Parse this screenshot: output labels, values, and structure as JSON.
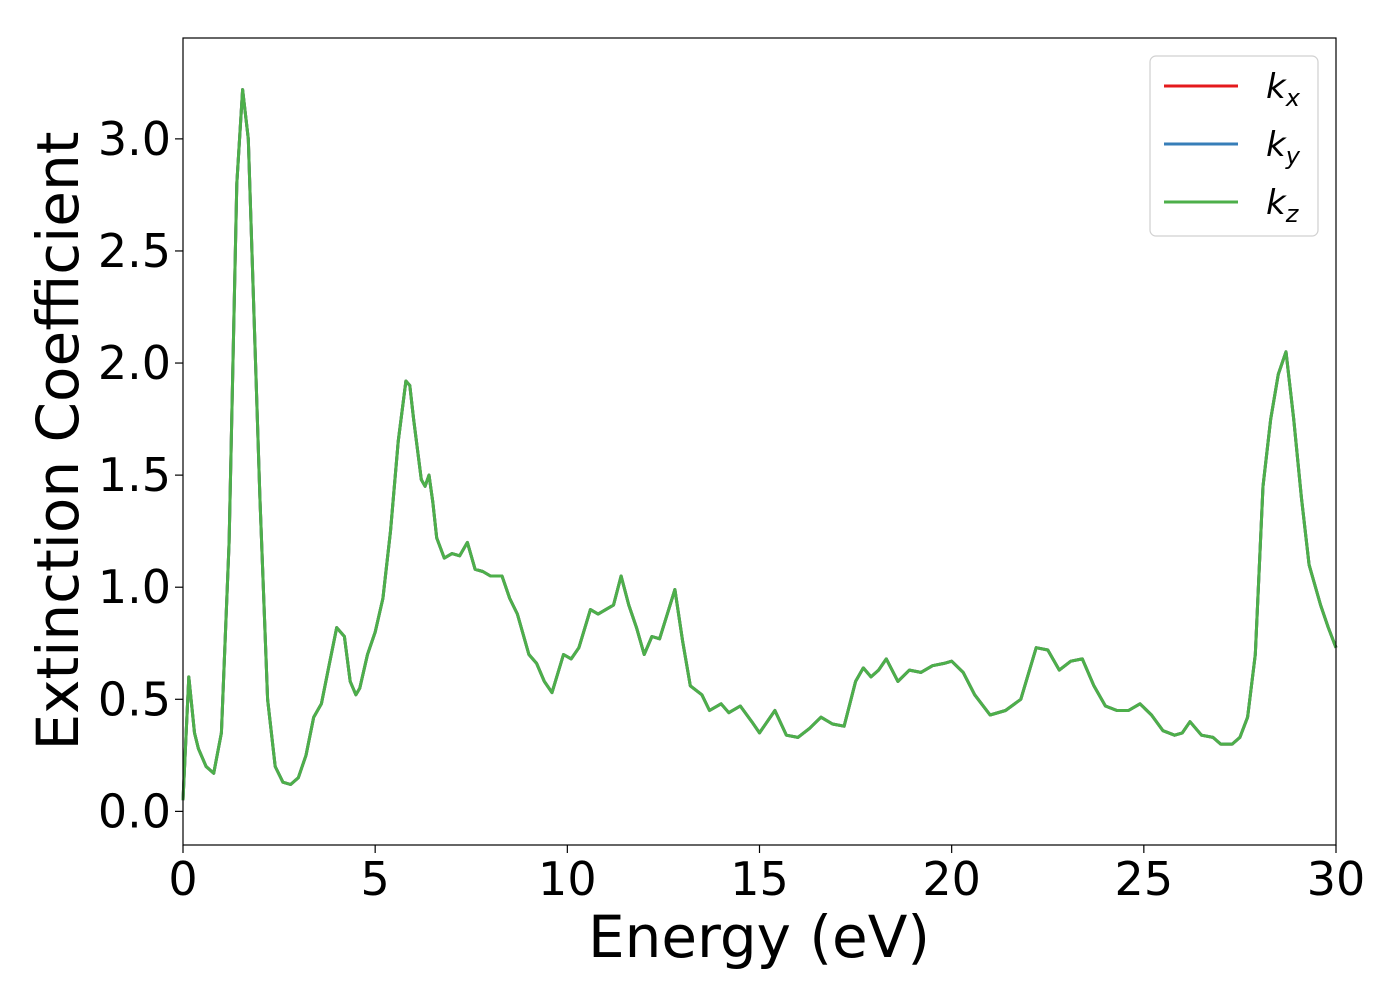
{
  "chart_data": {
    "type": "line",
    "xlabel": "Energy (eV)",
    "ylabel": "Extinction Coefficient",
    "xlim": [
      0,
      30
    ],
    "ylim": [
      -0.15,
      3.45
    ],
    "xticks": [
      "0",
      "5",
      "10",
      "15",
      "20",
      "25",
      "30"
    ],
    "yticks": [
      "0.0",
      "0.5",
      "1.0",
      "1.5",
      "2.0",
      "2.5",
      "3.0"
    ],
    "grid": false,
    "legend_position": "top-right",
    "series": [
      {
        "name": "k",
        "subscript": "x",
        "color": "#e41a1c"
      },
      {
        "name": "k",
        "subscript": "y",
        "color": "#377eb8"
      },
      {
        "name": "k",
        "subscript": "z",
        "color": "#4daf4a"
      }
    ],
    "x": [
      0,
      0.15,
      0.3,
      0.4,
      0.6,
      0.8,
      1.0,
      1.2,
      1.4,
      1.55,
      1.7,
      1.85,
      2.0,
      2.2,
      2.4,
      2.6,
      2.8,
      3.0,
      3.2,
      3.4,
      3.6,
      3.8,
      4.0,
      4.2,
      4.35,
      4.5,
      4.6,
      4.8,
      5.0,
      5.2,
      5.4,
      5.6,
      5.8,
      5.9,
      6.0,
      6.2,
      6.3,
      6.4,
      6.5,
      6.6,
      6.8,
      7.0,
      7.2,
      7.4,
      7.6,
      7.8,
      8.0,
      8.3,
      8.5,
      8.7,
      9.0,
      9.2,
      9.4,
      9.6,
      9.9,
      10.1,
      10.3,
      10.6,
      10.8,
      11.0,
      11.2,
      11.4,
      11.6,
      11.8,
      12.0,
      12.2,
      12.4,
      12.6,
      12.8,
      13.0,
      13.2,
      13.5,
      13.7,
      14.0,
      14.2,
      14.5,
      14.8,
      15.0,
      15.4,
      15.7,
      16.0,
      16.3,
      16.6,
      16.9,
      17.2,
      17.5,
      17.7,
      17.9,
      18.1,
      18.3,
      18.6,
      18.9,
      19.2,
      19.5,
      19.8,
      20.0,
      20.3,
      20.6,
      21.0,
      21.4,
      21.8,
      22.2,
      22.5,
      22.8,
      23.1,
      23.4,
      23.7,
      24.0,
      24.3,
      24.6,
      24.9,
      25.2,
      25.5,
      25.8,
      26.0,
      26.2,
      26.5,
      26.8,
      27.0,
      27.3,
      27.5,
      27.7,
      27.9,
      28.1,
      28.3,
      28.5,
      28.7,
      28.9,
      29.1,
      29.3,
      29.6,
      29.8,
      30.0
    ],
    "y": [
      0.05,
      0.6,
      0.35,
      0.28,
      0.2,
      0.17,
      0.35,
      1.2,
      2.8,
      3.22,
      3.0,
      2.2,
      1.4,
      0.5,
      0.2,
      0.13,
      0.12,
      0.15,
      0.25,
      0.42,
      0.48,
      0.65,
      0.82,
      0.78,
      0.58,
      0.52,
      0.55,
      0.7,
      0.8,
      0.95,
      1.25,
      1.65,
      1.92,
      1.9,
      1.75,
      1.48,
      1.45,
      1.5,
      1.38,
      1.22,
      1.13,
      1.15,
      1.14,
      1.2,
      1.08,
      1.07,
      1.05,
      1.05,
      0.95,
      0.88,
      0.7,
      0.66,
      0.58,
      0.53,
      0.7,
      0.68,
      0.73,
      0.9,
      0.88,
      0.9,
      0.92,
      1.05,
      0.92,
      0.82,
      0.7,
      0.78,
      0.77,
      0.88,
      0.99,
      0.76,
      0.56,
      0.52,
      0.45,
      0.48,
      0.44,
      0.47,
      0.4,
      0.35,
      0.45,
      0.34,
      0.33,
      0.37,
      0.42,
      0.39,
      0.38,
      0.58,
      0.64,
      0.6,
      0.63,
      0.68,
      0.58,
      0.63,
      0.62,
      0.65,
      0.66,
      0.67,
      0.62,
      0.52,
      0.43,
      0.45,
      0.5,
      0.73,
      0.72,
      0.63,
      0.67,
      0.68,
      0.56,
      0.47,
      0.45,
      0.45,
      0.48,
      0.43,
      0.36,
      0.34,
      0.35,
      0.4,
      0.34,
      0.33,
      0.3,
      0.3,
      0.33,
      0.42,
      0.7,
      1.45,
      1.75,
      1.95,
      2.05,
      1.75,
      1.4,
      1.1,
      0.92,
      0.82,
      0.73
    ]
  }
}
